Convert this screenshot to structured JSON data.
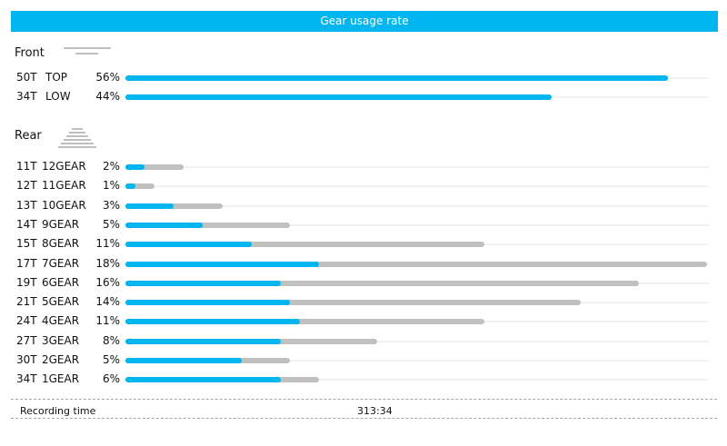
{
  "title": "Gear usage rate",
  "colors": {
    "accent": "#00b6f0",
    "bar_gray": "#c0c0c0"
  },
  "chart_data": [
    {
      "type": "bar",
      "section": "Front",
      "rows": [
        {
          "tooth": "50T",
          "gear": "TOP",
          "pct_label": "56%",
          "usage": 56,
          "gray_extent": 56
        },
        {
          "tooth": "34T",
          "gear": "LOW",
          "pct_label": "44%",
          "usage": 44,
          "gray_extent": 44
        }
      ]
    },
    {
      "type": "bar",
      "section": "Rear",
      "rows": [
        {
          "tooth": "11T",
          "gear": "12GEAR",
          "pct_label": "2%",
          "usage": 2,
          "gray_extent": 6
        },
        {
          "tooth": "12T",
          "gear": "11GEAR",
          "pct_label": "1%",
          "usage": 1,
          "gray_extent": 3
        },
        {
          "tooth": "13T",
          "gear": "10GEAR",
          "pct_label": "3%",
          "usage": 5,
          "gray_extent": 10
        },
        {
          "tooth": "14T",
          "gear": "9GEAR",
          "pct_label": "5%",
          "usage": 8,
          "gray_extent": 17
        },
        {
          "tooth": "15T",
          "gear": "8GEAR",
          "pct_label": "11%",
          "usage": 13,
          "gray_extent": 37
        },
        {
          "tooth": "17T",
          "gear": "7GEAR",
          "pct_label": "18%",
          "usage": 20,
          "gray_extent": 60
        },
        {
          "tooth": "19T",
          "gear": "6GEAR",
          "pct_label": "16%",
          "usage": 16,
          "gray_extent": 53
        },
        {
          "tooth": "21T",
          "gear": "5GEAR",
          "pct_label": "14%",
          "usage": 17,
          "gray_extent": 47
        },
        {
          "tooth": "24T",
          "gear": "4GEAR",
          "pct_label": "11%",
          "usage": 18,
          "gray_extent": 37
        },
        {
          "tooth": "27T",
          "gear": "3GEAR",
          "pct_label": "8%",
          "usage": 16,
          "gray_extent": 26
        },
        {
          "tooth": "30T",
          "gear": "2GEAR",
          "pct_label": "5%",
          "usage": 12,
          "gray_extent": 17
        },
        {
          "tooth": "34T",
          "gear": "1GEAR",
          "pct_label": "6%",
          "usage": 16,
          "gray_extent": 20
        }
      ]
    }
  ],
  "footer": {
    "label": "Recording time",
    "value": "313:34"
  }
}
